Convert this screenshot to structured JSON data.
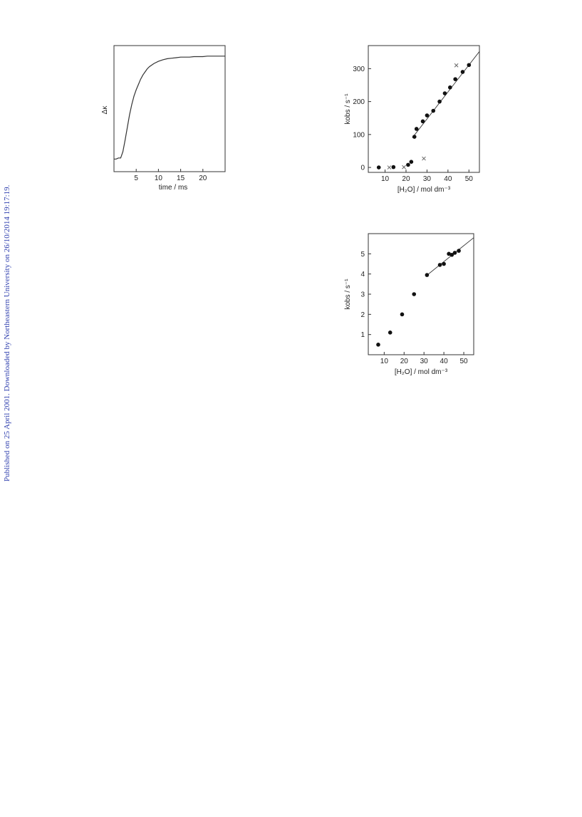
{
  "watermark": {
    "text": "Published on 25 April 2001. Downloaded by Northeastern University on 26/10/2014 19:17:19.",
    "color": "#2f3fae"
  },
  "chart_data": [
    {
      "id": "kinetic-trace",
      "type": "line",
      "xlabel": "time / ms",
      "ylabel": "Δκ",
      "xticks": [
        "5",
        "10",
        "15",
        "20"
      ],
      "xlim": [
        0,
        25
      ],
      "ylim": [
        -0.1,
        1.1
      ],
      "series": [
        {
          "x": [
            0,
            0.5,
            1,
            1.5,
            2,
            2.5,
            3,
            3.5,
            4,
            4.5,
            5,
            5.5,
            6,
            6.5,
            7,
            7.5,
            8,
            9,
            10,
            11,
            12,
            13,
            14,
            15,
            16,
            17,
            18,
            19,
            20,
            21,
            22,
            23,
            24,
            25
          ],
          "y": [
            0.02,
            0.02,
            0.03,
            0.03,
            0.09,
            0.2,
            0.32,
            0.44,
            0.54,
            0.62,
            0.68,
            0.73,
            0.78,
            0.82,
            0.85,
            0.88,
            0.9,
            0.93,
            0.95,
            0.965,
            0.975,
            0.98,
            0.985,
            0.99,
            0.99,
            0.99,
            0.995,
            0.995,
            0.995,
            1.0,
            1.0,
            1.0,
            1.0,
            1.0
          ]
        }
      ]
    },
    {
      "id": "kobs-vs-water-1",
      "type": "scatter",
      "xlabel": "[H₂O] / mol dm⁻³",
      "ylabel": "kobs / s⁻¹",
      "xticks": [
        10,
        20,
        30,
        40,
        50
      ],
      "yticks": [
        0,
        100,
        200,
        300
      ],
      "xlim": [
        2,
        55
      ],
      "ylim": [
        -15,
        370
      ],
      "series": [
        {
          "marker": "dot",
          "points": [
            [
              7,
              0
            ],
            [
              14,
              1
            ],
            [
              21,
              8
            ],
            [
              22.5,
              17
            ],
            [
              24,
              93
            ],
            [
              25,
              117
            ],
            [
              28,
              140
            ],
            [
              30,
              158
            ],
            [
              33,
              172
            ],
            [
              36,
              200
            ],
            [
              38.5,
              225
            ],
            [
              41,
              243
            ],
            [
              43.5,
              268
            ],
            [
              47,
              290
            ],
            [
              50,
              311
            ]
          ]
        },
        {
          "marker": "cross",
          "points": [
            [
              12,
              0
            ],
            [
              19,
              1
            ],
            [
              28.5,
              27
            ],
            [
              44,
              310
            ]
          ]
        }
      ],
      "fit_line": [
        [
          23,
          90
        ],
        [
          55,
          352
        ]
      ]
    },
    {
      "id": "kobs-vs-water-2",
      "type": "scatter",
      "xlabel": "[H₂O] / mol dm⁻³",
      "ylabel": "kobs / s⁻¹",
      "xticks": [
        10,
        20,
        30,
        40,
        50
      ],
      "yticks": [
        1,
        2,
        3,
        4,
        5
      ],
      "xlim": [
        2,
        55
      ],
      "ylim": [
        0,
        6
      ],
      "series": [
        {
          "marker": "dot",
          "points": [
            [
              7,
              0.5
            ],
            [
              13,
              1.1
            ],
            [
              19,
              2.0
            ],
            [
              25,
              3.0
            ],
            [
              31.5,
              3.95
            ],
            [
              38,
              4.45
            ],
            [
              40,
              4.5
            ],
            [
              42.5,
              5.0
            ],
            [
              44,
              4.95
            ],
            [
              45.5,
              5.05
            ],
            [
              47.5,
              5.15
            ]
          ]
        }
      ],
      "fit_line": [
        [
          31,
          3.9
        ],
        [
          55,
          5.8
        ]
      ]
    }
  ]
}
